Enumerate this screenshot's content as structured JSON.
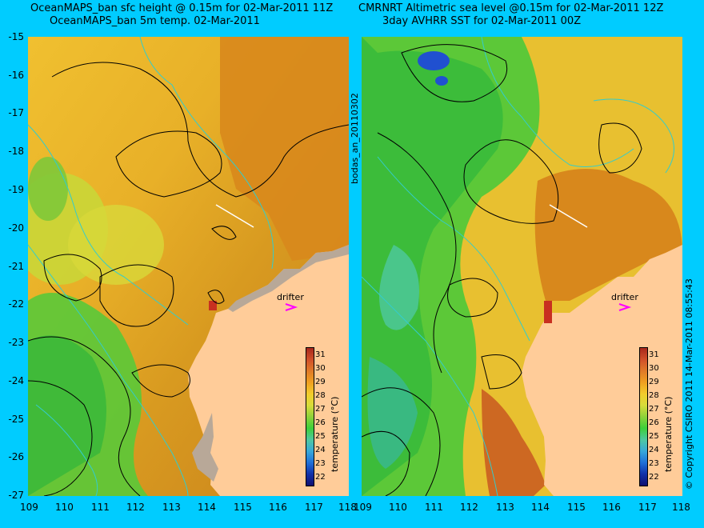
{
  "left_panel": {
    "title_line1": "OceanMAPS_ban sfc height @ 0.15m for 02-Mar-2011 11Z",
    "title_line2": "OceanMAPS_ban 5m temp. 02-Mar-2011",
    "drifter_label": "drifter"
  },
  "right_panel": {
    "title_line1": "CMRNRT Altimetric sea level  @0.15m  for 02-Mar-2011 12Z",
    "title_line2": "3day AVHRR SST for 02-Mar-2011 00Z",
    "drifter_label": "drifter"
  },
  "center_label": "bodas_an_20110302",
  "copyright": "© Copyright CSIRO 2011   14-Mar-2011 08:55:43",
  "y_ticks": [
    "-15",
    "-16",
    "-17",
    "-18",
    "-19",
    "-20",
    "-21",
    "-22",
    "-23",
    "-24",
    "-25",
    "-26",
    "-27"
  ],
  "x_ticks": [
    "109",
    "110",
    "111",
    "112",
    "113",
    "114",
    "115",
    "116",
    "117",
    "118"
  ],
  "colorbar": {
    "label": "temperature (°C)",
    "ticks": [
      "31",
      "30",
      "29",
      "28",
      "27",
      "26",
      "25",
      "24",
      "23",
      "22"
    ],
    "colors": [
      "#a8281c",
      "#d0502a",
      "#e07a28",
      "#f0a020",
      "#f2cc2c",
      "#d8dc3a",
      "#8ed23a",
      "#3ecf3a",
      "#4ec8a0",
      "#38a8d8",
      "#2070d8",
      "#1030a8",
      "#101070"
    ]
  },
  "colors": {
    "background": "#00ccff",
    "land": "#ffcc99",
    "contour": "#000000",
    "contour_alt": "#33cccc",
    "drifter_marker": "#ff00ff"
  }
}
